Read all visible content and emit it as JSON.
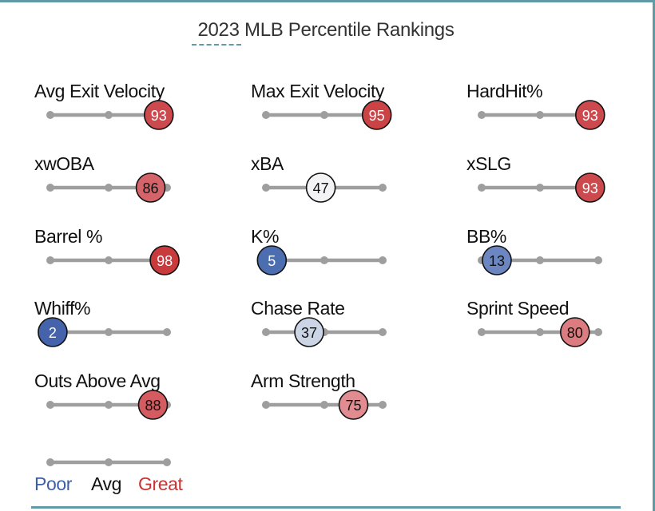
{
  "title": "2023 MLB Percentile Rankings",
  "colors": {
    "track": "#9e9e9e",
    "frame": "#5f9aa6",
    "poor": "#3d5fa8",
    "avg": "#111111",
    "great": "#cc3333"
  },
  "chart_data": {
    "type": "percentile-sliders",
    "title": "2023 MLB Percentile Rankings",
    "scale": [
      0,
      100
    ],
    "metrics": [
      {
        "label": "Avg Exit Velocity",
        "value": 93,
        "fill": "#cc4a4e",
        "text_color": "#ffffff"
      },
      {
        "label": "Max Exit Velocity",
        "value": 95,
        "fill": "#cc4346",
        "text_color": "#ffffff"
      },
      {
        "label": "HardHit%",
        "value": 93,
        "fill": "#cc4a4e",
        "text_color": "#ffffff"
      },
      {
        "label": "xwOBA",
        "value": 86,
        "fill": "#d4646a",
        "text_color": "#111111"
      },
      {
        "label": "xBA",
        "value": 47,
        "fill": "#f3f3f6",
        "text_color": "#111111"
      },
      {
        "label": "xSLG",
        "value": 93,
        "fill": "#cc4a4e",
        "text_color": "#ffffff"
      },
      {
        "label": "Barrel %",
        "value": 98,
        "fill": "#c93a3d",
        "text_color": "#ffffff"
      },
      {
        "label": "K%",
        "value": 5,
        "fill": "#4c6db0",
        "text_color": "#ffffff"
      },
      {
        "label": "BB%",
        "value": 13,
        "fill": "#6b86c0",
        "text_color": "#111111"
      },
      {
        "label": "Whiff%",
        "value": 2,
        "fill": "#4463aa",
        "text_color": "#ffffff"
      },
      {
        "label": "Chase Rate",
        "value": 37,
        "fill": "#ccd5e6",
        "text_color": "#111111"
      },
      {
        "label": "Sprint Speed",
        "value": 80,
        "fill": "#dc7c80",
        "text_color": "#111111"
      },
      {
        "label": "Outs Above Avg",
        "value": 88,
        "fill": "#d45c61",
        "text_color": "#111111"
      },
      {
        "label": "Arm Strength",
        "value": 75,
        "fill": "#e08c90",
        "text_color": "#111111"
      }
    ],
    "legend": [
      {
        "label": "Poor",
        "color": "#3d5fa8"
      },
      {
        "label": "Avg",
        "color": "#111111"
      },
      {
        "label": "Great",
        "color": "#cc3333"
      }
    ]
  }
}
